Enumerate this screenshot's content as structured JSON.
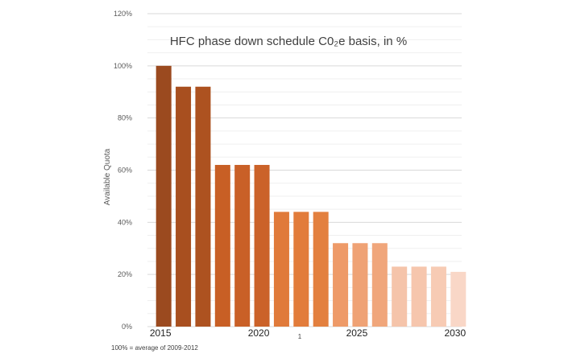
{
  "chart_data": {
    "type": "bar",
    "title": "HFC phase down schedule C0₂e basis, in %",
    "xlabel": "",
    "ylabel": "Available Quota",
    "ylim": [
      0,
      120
    ],
    "yticks": [
      "0%",
      "20%",
      "40%",
      "60%",
      "80%",
      "100%",
      "120%"
    ],
    "x_tick_labels": [
      "2015",
      "2020",
      "2025",
      "2030"
    ],
    "categories": [
      "2015",
      "2016",
      "2017",
      "2018",
      "2019",
      "2020",
      "2021",
      "2022",
      "2023",
      "2024",
      "2025",
      "2026",
      "2027",
      "2028",
      "2029",
      "2030"
    ],
    "values": [
      100,
      92,
      92,
      62,
      62,
      62,
      44,
      44,
      44,
      32,
      32,
      32,
      23,
      23,
      23,
      21
    ],
    "bar_colors": [
      "#9b4a1f",
      "#a84f1f",
      "#ad5220",
      "#c85f25",
      "#c96027",
      "#cb6229",
      "#e07a3a",
      "#e27c3b",
      "#e3803f",
      "#ee9a68",
      "#efa275",
      "#f0a67b",
      "#f5c4aa",
      "#f6c6ad",
      "#f7cbb4",
      "#f9d7c7"
    ],
    "grid": true,
    "legend": "none",
    "footnote": "100% = average of 2009-2012",
    "marker_text": "1"
  }
}
